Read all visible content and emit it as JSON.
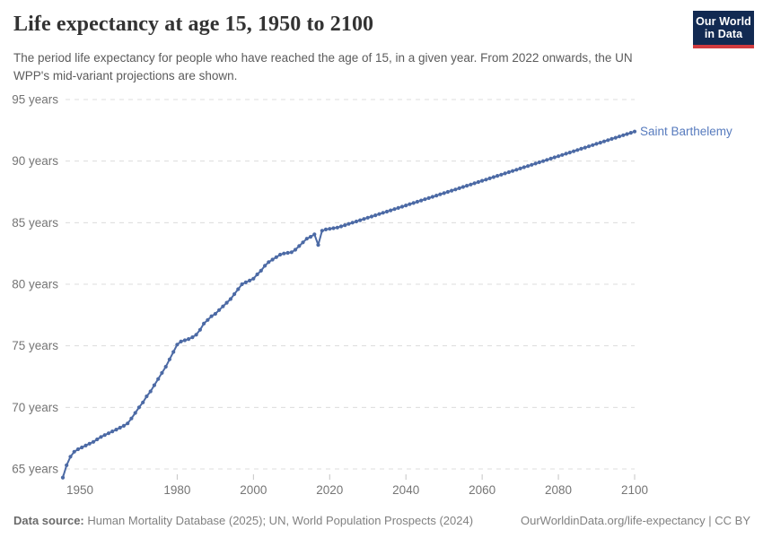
{
  "header": {
    "title": "Life expectancy at age 15, 1950 to 2100",
    "subtitle": "The period life expectancy for people who have reached the age of 15, in a given year. From 2022 onwards, the UN WPP's mid-variant projections are shown.",
    "logo": {
      "line1": "Our World",
      "line2": "in Data",
      "bg_color": "#122A52",
      "accent_color": "#D13B3F"
    }
  },
  "footer": {
    "datasource_label": "Data source:",
    "datasource_text": " Human Mortality Database (2025); UN, World Population Prospects (2024)",
    "attribution": "OurWorldinData.org/life-expectancy | CC BY"
  },
  "chart_data": {
    "type": "line",
    "title": "Life expectancy at age 15, 1950 to 2100",
    "entity_label": "Saint Barthelemy",
    "line_color": "#4C6AA5",
    "label_color": "#577BBE",
    "grid_color": "#DCDCDC",
    "tick_color": "#C4C4C4",
    "axis_text_color": "#757575",
    "grid": true,
    "grid_style": "dashed",
    "legend_position": "line-end",
    "xlim": [
      1950,
      2100
    ],
    "ylim": [
      65,
      95
    ],
    "xlabel": "",
    "ylabel": "",
    "xticks": [
      {
        "value": 1950,
        "label": "1950"
      },
      {
        "value": 1980,
        "label": "1980"
      },
      {
        "value": 2000,
        "label": "2000"
      },
      {
        "value": 2020,
        "label": "2020"
      },
      {
        "value": 2040,
        "label": "2040"
      },
      {
        "value": 2060,
        "label": "2060"
      },
      {
        "value": 2080,
        "label": "2080"
      },
      {
        "value": 2100,
        "label": "2100"
      }
    ],
    "yticks": [
      {
        "value": 65,
        "label": "65 years"
      },
      {
        "value": 70,
        "label": "70 years"
      },
      {
        "value": 75,
        "label": "75 years"
      },
      {
        "value": 80,
        "label": "80 years"
      },
      {
        "value": 85,
        "label": "85 years"
      },
      {
        "value": 90,
        "label": "90 years"
      },
      {
        "value": 95,
        "label": "95 years"
      }
    ],
    "series": [
      {
        "name": "Saint Barthelemy",
        "points": [
          [
            1950,
            64.3
          ],
          [
            1951,
            65.3
          ],
          [
            1952,
            66.0
          ],
          [
            1953,
            66.4
          ],
          [
            1954,
            66.6
          ],
          [
            1955,
            66.75
          ],
          [
            1956,
            66.9
          ],
          [
            1957,
            67.05
          ],
          [
            1958,
            67.2
          ],
          [
            1959,
            67.4
          ],
          [
            1960,
            67.6
          ],
          [
            1961,
            67.75
          ],
          [
            1962,
            67.9
          ],
          [
            1963,
            68.05
          ],
          [
            1964,
            68.2
          ],
          [
            1965,
            68.35
          ],
          [
            1966,
            68.5
          ],
          [
            1967,
            68.7
          ],
          [
            1968,
            69.1
          ],
          [
            1969,
            69.55
          ],
          [
            1970,
            70.0
          ],
          [
            1971,
            70.4
          ],
          [
            1972,
            70.9
          ],
          [
            1973,
            71.3
          ],
          [
            1974,
            71.8
          ],
          [
            1975,
            72.3
          ],
          [
            1976,
            72.8
          ],
          [
            1977,
            73.3
          ],
          [
            1978,
            73.9
          ],
          [
            1979,
            74.5
          ],
          [
            1980,
            75.1
          ],
          [
            1981,
            75.35
          ],
          [
            1982,
            75.45
          ],
          [
            1983,
            75.55
          ],
          [
            1984,
            75.7
          ],
          [
            1985,
            75.9
          ],
          [
            1986,
            76.3
          ],
          [
            1987,
            76.8
          ],
          [
            1988,
            77.1
          ],
          [
            1989,
            77.4
          ],
          [
            1990,
            77.6
          ],
          [
            1991,
            77.9
          ],
          [
            1992,
            78.2
          ],
          [
            1993,
            78.5
          ],
          [
            1994,
            78.8
          ],
          [
            1995,
            79.2
          ],
          [
            1996,
            79.6
          ],
          [
            1997,
            80.0
          ],
          [
            1998,
            80.15
          ],
          [
            1999,
            80.3
          ],
          [
            2000,
            80.45
          ],
          [
            2001,
            80.8
          ],
          [
            2002,
            81.1
          ],
          [
            2003,
            81.5
          ],
          [
            2004,
            81.8
          ],
          [
            2005,
            82.0
          ],
          [
            2006,
            82.2
          ],
          [
            2007,
            82.4
          ],
          [
            2008,
            82.5
          ],
          [
            2009,
            82.55
          ],
          [
            2010,
            82.6
          ],
          [
            2011,
            82.8
          ],
          [
            2012,
            83.1
          ],
          [
            2013,
            83.4
          ],
          [
            2014,
            83.7
          ],
          [
            2015,
            83.85
          ],
          [
            2016,
            84.05
          ],
          [
            2017,
            83.2
          ],
          [
            2018,
            84.35
          ],
          [
            2019,
            84.45
          ],
          [
            2020,
            84.5
          ],
          [
            2021,
            84.55
          ],
          [
            2022,
            84.6
          ],
          [
            2023,
            84.7
          ],
          [
            2024,
            84.8
          ],
          [
            2025,
            84.9
          ],
          [
            2026,
            85.0
          ],
          [
            2027,
            85.1
          ],
          [
            2028,
            85.2
          ],
          [
            2029,
            85.3
          ],
          [
            2030,
            85.4
          ],
          [
            2031,
            85.5
          ],
          [
            2032,
            85.6
          ],
          [
            2033,
            85.7
          ],
          [
            2034,
            85.8
          ],
          [
            2035,
            85.9
          ],
          [
            2036,
            86.0
          ],
          [
            2037,
            86.1
          ],
          [
            2038,
            86.2
          ],
          [
            2039,
            86.3
          ],
          [
            2040,
            86.4
          ],
          [
            2041,
            86.5
          ],
          [
            2042,
            86.6
          ],
          [
            2043,
            86.7
          ],
          [
            2044,
            86.8
          ],
          [
            2045,
            86.9
          ],
          [
            2046,
            87.0
          ],
          [
            2047,
            87.1
          ],
          [
            2048,
            87.2
          ],
          [
            2049,
            87.3
          ],
          [
            2050,
            87.4
          ],
          [
            2051,
            87.5
          ],
          [
            2052,
            87.6
          ],
          [
            2053,
            87.7
          ],
          [
            2054,
            87.8
          ],
          [
            2055,
            87.9
          ],
          [
            2056,
            88.0
          ],
          [
            2057,
            88.1
          ],
          [
            2058,
            88.2
          ],
          [
            2059,
            88.3
          ],
          [
            2060,
            88.4
          ],
          [
            2061,
            88.5
          ],
          [
            2062,
            88.6
          ],
          [
            2063,
            88.7
          ],
          [
            2064,
            88.8
          ],
          [
            2065,
            88.9
          ],
          [
            2066,
            89.0
          ],
          [
            2067,
            89.1
          ],
          [
            2068,
            89.2
          ],
          [
            2069,
            89.3
          ],
          [
            2070,
            89.4
          ],
          [
            2071,
            89.5
          ],
          [
            2072,
            89.6
          ],
          [
            2073,
            89.7
          ],
          [
            2074,
            89.8
          ],
          [
            2075,
            89.9
          ],
          [
            2076,
            90.0
          ],
          [
            2077,
            90.1
          ],
          [
            2078,
            90.2
          ],
          [
            2079,
            90.3
          ],
          [
            2080,
            90.4
          ],
          [
            2081,
            90.5
          ],
          [
            2082,
            90.6
          ],
          [
            2083,
            90.7
          ],
          [
            2084,
            90.8
          ],
          [
            2085,
            90.9
          ],
          [
            2086,
            91.0
          ],
          [
            2087,
            91.1
          ],
          [
            2088,
            91.2
          ],
          [
            2089,
            91.3
          ],
          [
            2090,
            91.4
          ],
          [
            2091,
            91.5
          ],
          [
            2092,
            91.6
          ],
          [
            2093,
            91.7
          ],
          [
            2094,
            91.8
          ],
          [
            2095,
            91.9
          ],
          [
            2096,
            92.0
          ],
          [
            2097,
            92.1
          ],
          [
            2098,
            92.2
          ],
          [
            2099,
            92.3
          ],
          [
            2100,
            92.4
          ]
        ]
      }
    ]
  }
}
